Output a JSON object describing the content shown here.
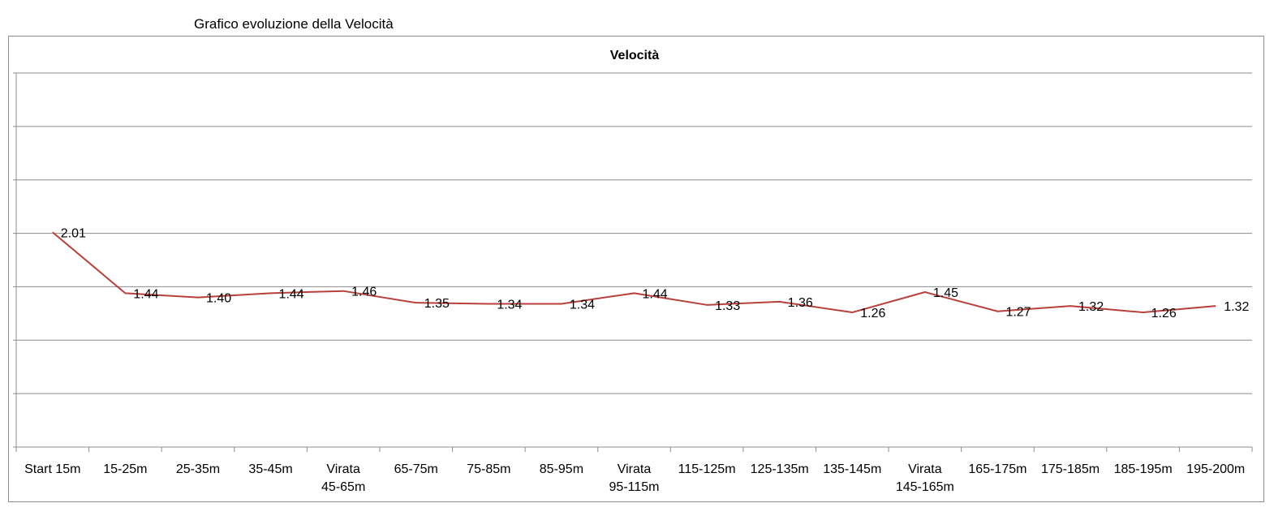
{
  "sheet": {
    "title": "Grafico evoluzione della Velocità"
  },
  "colors": {
    "series_line": "#b9403a",
    "grid": "#8c8c8c",
    "axis": "#8c8c8c"
  },
  "chart_data": {
    "type": "line",
    "title": "Velocità",
    "xlabel": "",
    "ylabel": "",
    "ylim": [
      0,
      3.5
    ],
    "grid": true,
    "legend": "none",
    "categories": [
      [
        "Start 15m"
      ],
      [
        "15-25m"
      ],
      [
        "25-35m"
      ],
      [
        "35-45m"
      ],
      [
        "Virata",
        "45-65m"
      ],
      [
        "65-75m"
      ],
      [
        "75-85m"
      ],
      [
        "85-95m"
      ],
      [
        "Virata",
        "95-115m"
      ],
      [
        "115-125m"
      ],
      [
        "125-135m"
      ],
      [
        "135-145m"
      ],
      [
        "Virata",
        "145-165m"
      ],
      [
        "165-175m"
      ],
      [
        "175-185m"
      ],
      [
        "185-195m"
      ],
      [
        "195-200m"
      ]
    ],
    "series": [
      {
        "values": [
          2.01,
          1.44,
          1.4,
          1.44,
          1.46,
          1.35,
          1.34,
          1.34,
          1.44,
          1.33,
          1.36,
          1.26,
          1.45,
          1.27,
          1.32,
          1.26,
          1.32
        ],
        "labels": [
          "2.01",
          "1.44",
          "1.40",
          "1.44",
          "1.46",
          "1.35",
          "1.34",
          "1.34",
          "1.44",
          "1.33",
          "1.36",
          "1.26",
          "1.45",
          "1.27",
          "1.32",
          "1.26",
          "1.32"
        ]
      }
    ]
  }
}
